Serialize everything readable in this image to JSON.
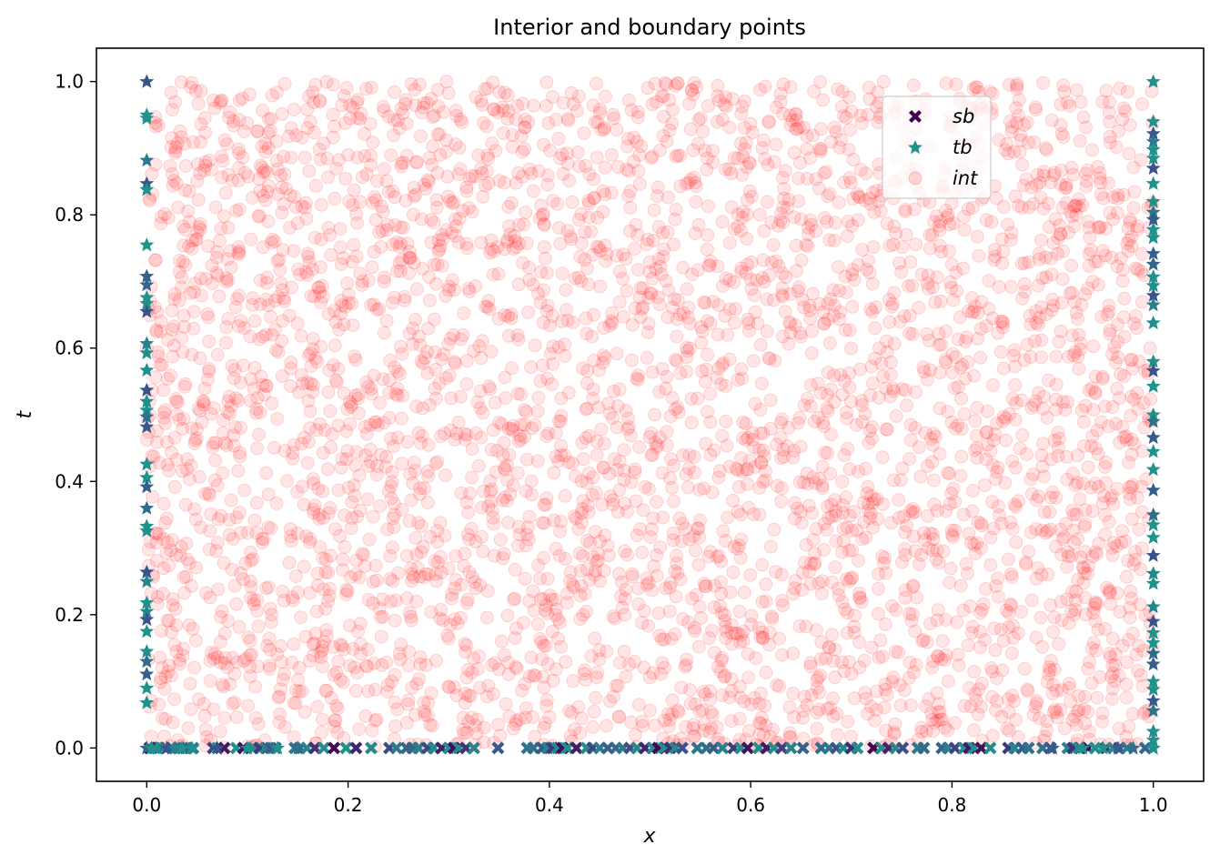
{
  "chart_data": {
    "type": "scatter",
    "title": "Interior and boundary points",
    "xlabel": "x",
    "ylabel": "t",
    "xlim": [
      -0.05,
      1.05
    ],
    "ylim": [
      -0.05,
      1.05
    ],
    "xticks": [
      "0.0",
      "0.2",
      "0.4",
      "0.6",
      "0.8",
      "1.0"
    ],
    "yticks": [
      "0.0",
      "0.2",
      "0.4",
      "0.6",
      "0.8",
      "1.0"
    ],
    "legend_position": "top-right",
    "grid": false,
    "series": [
      {
        "name": "sb",
        "marker": "x-filled",
        "color_range": [
          "#440154",
          "#21918c"
        ],
        "note_points": "x sampled along t = 0",
        "x": [
          0.003,
          0.008,
          0.012,
          0.018,
          0.025,
          0.031,
          0.036,
          0.04,
          0.046,
          0.066,
          0.07,
          0.077,
          0.089,
          0.096,
          0.106,
          0.112,
          0.118,
          0.123,
          0.128,
          0.147,
          0.152,
          0.159,
          0.167,
          0.176,
          0.186,
          0.198,
          0.208,
          0.223,
          0.241,
          0.248,
          0.258,
          0.264,
          0.27,
          0.279,
          0.285,
          0.293,
          0.3,
          0.305,
          0.31,
          0.317,
          0.325,
          0.349,
          0.378,
          0.384,
          0.393,
          0.398,
          0.403,
          0.408,
          0.413,
          0.418,
          0.427,
          0.437,
          0.443,
          0.45,
          0.458,
          0.466,
          0.473,
          0.48,
          0.487,
          0.495,
          0.503,
          0.508,
          0.514,
          0.52,
          0.525,
          0.532,
          0.547,
          0.556,
          0.563,
          0.572,
          0.583,
          0.59,
          0.597,
          0.608,
          0.616,
          0.623,
          0.631,
          0.64,
          0.652,
          0.67,
          0.678,
          0.685,
          0.692,
          0.7,
          0.706,
          0.722,
          0.73,
          0.737,
          0.744,
          0.751,
          0.766,
          0.772,
          0.79,
          0.796,
          0.803,
          0.812,
          0.817,
          0.822,
          0.829,
          0.838,
          0.856,
          0.862,
          0.87,
          0.876,
          0.89,
          0.898,
          0.915,
          0.92,
          0.926,
          0.935,
          0.942,
          0.953,
          0.96,
          0.966,
          0.974,
          0.992
        ],
        "t": "all 0"
      },
      {
        "name": "tb",
        "marker": "star",
        "color_range": [
          "#21918c",
          "#440154"
        ],
        "note_points": "t sampled along x = 0 and x = 1",
        "x0_t": [
          1.0,
          0.95,
          0.945,
          0.882,
          0.847,
          0.838,
          0.755,
          0.708,
          0.695,
          0.676,
          0.667,
          0.655,
          0.607,
          0.593,
          0.567,
          0.537,
          0.52,
          0.507,
          0.497,
          0.482,
          0.426,
          0.406,
          0.392,
          0.36,
          0.333,
          0.326,
          0.264,
          0.25,
          0.218,
          0.205,
          0.193,
          0.175,
          0.145,
          0.13,
          0.111,
          0.09,
          0.068
        ],
        "x1_t": [
          1.0,
          0.94,
          0.922,
          0.91,
          0.898,
          0.885,
          0.87,
          0.847,
          0.82,
          0.804,
          0.793,
          0.778,
          0.766,
          0.742,
          0.726,
          0.707,
          0.694,
          0.679,
          0.665,
          0.638,
          0.58,
          0.566,
          0.543,
          0.5,
          0.49,
          0.466,
          0.445,
          0.418,
          0.387,
          0.35,
          0.335,
          0.316,
          0.289,
          0.262,
          0.247,
          0.212,
          0.19,
          0.173,
          0.158,
          0.142,
          0.126,
          0.1,
          0.088,
          0.071,
          0.056,
          0.025,
          0.012,
          0.0
        ]
      },
      {
        "name": "int",
        "marker": "circle",
        "color": "#ff0000",
        "alpha": 0.12,
        "note_points": "about 4000 interior points uniformly spread over [0,1] x [0,1]",
        "count": 4000
      }
    ]
  }
}
